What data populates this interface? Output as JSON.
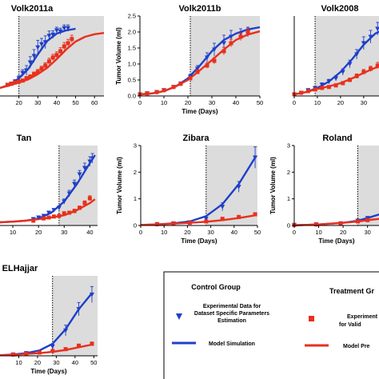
{
  "colors": {
    "control": "#1f3fc9",
    "treatment": "#e8301c",
    "shade": "#dcdcdc",
    "axis": "#000000"
  },
  "chart_data": [
    {
      "type": "scatter",
      "title": "Volk2011a",
      "xlabel": "",
      "ylabel": "",
      "xlim": [
        10,
        65
      ],
      "ylim": [
        0,
        2.5
      ],
      "xticks": [
        20,
        30,
        40,
        50,
        60
      ],
      "yticks": [],
      "treatment_start": 20,
      "series": [
        {
          "group": "control",
          "kind": "data",
          "marker": "triangle",
          "x": [
            14,
            16,
            18,
            20,
            22,
            24,
            26,
            28,
            30,
            32,
            34,
            36,
            38,
            40,
            42,
            44,
            46
          ],
          "y": [
            0.35,
            0.38,
            0.45,
            0.55,
            0.72,
            0.8,
            1.05,
            1.25,
            1.52,
            1.62,
            1.68,
            1.88,
            1.92,
            2.05,
            2.02,
            2.12,
            2.12
          ],
          "err": [
            0.05,
            0.05,
            0.06,
            0.08,
            0.1,
            0.15,
            0.18,
            0.2,
            0.22,
            0.18,
            0.2,
            0.15,
            0.12,
            0.1,
            0.1,
            0.1,
            0.1
          ]
        },
        {
          "group": "treatment",
          "kind": "data",
          "marker": "square",
          "x": [
            14,
            16,
            18,
            20,
            22,
            24,
            26,
            28,
            30,
            32,
            34,
            36,
            38,
            40,
            42,
            44,
            46,
            48
          ],
          "y": [
            0.35,
            0.38,
            0.42,
            0.45,
            0.48,
            0.55,
            0.6,
            0.68,
            0.75,
            0.85,
            0.95,
            1.08,
            1.2,
            1.28,
            1.4,
            1.55,
            1.65,
            1.78
          ],
          "err": [
            0.05,
            0.05,
            0.05,
            0.05,
            0.05,
            0.06,
            0.06,
            0.07,
            0.08,
            0.08,
            0.09,
            0.1,
            0.1,
            0.1,
            0.11,
            0.12,
            0.12,
            0.12
          ]
        },
        {
          "group": "control",
          "kind": "model",
          "x": [
            10,
            15,
            20,
            25,
            30,
            35,
            40,
            45,
            50
          ],
          "y": [
            0.25,
            0.35,
            0.55,
            0.85,
            1.3,
            1.72,
            1.95,
            2.05,
            2.1
          ]
        },
        {
          "group": "treatment",
          "kind": "model",
          "x": [
            10,
            15,
            20,
            25,
            30,
            35,
            40,
            45,
            50,
            55,
            60,
            65
          ],
          "y": [
            0.25,
            0.33,
            0.42,
            0.52,
            0.68,
            0.88,
            1.15,
            1.45,
            1.7,
            1.85,
            1.93,
            1.97
          ]
        }
      ]
    },
    {
      "type": "scatter",
      "title": "Volk2011b",
      "xlabel": "Time (Days)",
      "ylabel": "Tumor Volume (ml)",
      "xlim": [
        0,
        50
      ],
      "ylim": [
        0,
        2.5
      ],
      "xticks": [
        0,
        10,
        20,
        30,
        40,
        50
      ],
      "yticks": [
        0.0,
        0.5,
        1.0,
        1.5,
        2.0,
        2.5
      ],
      "treatment_start": 21,
      "series": [
        {
          "group": "control",
          "kind": "data",
          "marker": "triangle",
          "x": [
            0,
            3,
            7,
            10,
            14,
            17,
            21,
            24,
            28,
            31,
            35,
            38,
            42,
            45
          ],
          "y": [
            0.05,
            0.08,
            0.12,
            0.18,
            0.28,
            0.38,
            0.6,
            0.85,
            1.2,
            1.45,
            1.65,
            1.85,
            1.95,
            2.0
          ],
          "err": [
            0.02,
            0.02,
            0.03,
            0.03,
            0.04,
            0.06,
            0.08,
            0.1,
            0.15,
            0.2,
            0.25,
            0.2,
            0.15,
            0.15
          ]
        },
        {
          "group": "treatment",
          "kind": "data",
          "marker": "square",
          "x": [
            0,
            3,
            7,
            10,
            14,
            17,
            21,
            24,
            28,
            31,
            35,
            38,
            42,
            45
          ],
          "y": [
            0.05,
            0.08,
            0.12,
            0.18,
            0.28,
            0.38,
            0.55,
            0.75,
            0.95,
            1.1,
            1.4,
            1.65,
            1.85,
            2.0
          ],
          "err": [
            0.02,
            0.02,
            0.03,
            0.03,
            0.04,
            0.05,
            0.06,
            0.07,
            0.08,
            0.1,
            0.12,
            0.12,
            0.12,
            0.12
          ]
        },
        {
          "group": "control",
          "kind": "model",
          "x": [
            0,
            5,
            10,
            15,
            20,
            25,
            30,
            35,
            40,
            45,
            50
          ],
          "y": [
            0.05,
            0.08,
            0.15,
            0.3,
            0.55,
            0.95,
            1.4,
            1.75,
            1.95,
            2.08,
            2.15
          ]
        },
        {
          "group": "treatment",
          "kind": "model",
          "x": [
            0,
            5,
            10,
            15,
            20,
            25,
            30,
            35,
            40,
            45,
            50
          ],
          "y": [
            0.05,
            0.08,
            0.15,
            0.3,
            0.5,
            0.8,
            1.12,
            1.45,
            1.75,
            1.92,
            2.02
          ]
        }
      ]
    },
    {
      "type": "scatter",
      "title": "Volk2008",
      "xlabel": "",
      "ylabel": "",
      "xlim": [
        0,
        38
      ],
      "ylim": [
        0,
        2.5
      ],
      "xticks": [
        0,
        10,
        20,
        30
      ],
      "yticks": [],
      "treatment_start": 9,
      "series": [
        {
          "group": "control",
          "kind": "data",
          "marker": "triangle",
          "x": [
            0,
            3,
            6,
            9,
            12,
            15,
            18,
            21,
            24,
            27,
            30,
            33,
            36
          ],
          "y": [
            0.05,
            0.1,
            0.18,
            0.25,
            0.35,
            0.45,
            0.55,
            0.75,
            1.0,
            1.3,
            1.65,
            1.85,
            2.1
          ],
          "err": [
            0.02,
            0.03,
            0.04,
            0.05,
            0.06,
            0.07,
            0.08,
            0.1,
            0.12,
            0.15,
            0.2,
            0.2,
            0.2
          ]
        },
        {
          "group": "treatment",
          "kind": "data",
          "marker": "square",
          "x": [
            0,
            3,
            6,
            9,
            12,
            15,
            18,
            21,
            24,
            27,
            30,
            33,
            36
          ],
          "y": [
            0.05,
            0.1,
            0.15,
            0.2,
            0.25,
            0.28,
            0.33,
            0.4,
            0.5,
            0.62,
            0.75,
            0.85,
            0.95
          ],
          "err": [
            0.02,
            0.03,
            0.03,
            0.04,
            0.04,
            0.04,
            0.05,
            0.05,
            0.06,
            0.07,
            0.08,
            0.08,
            0.1
          ]
        },
        {
          "group": "control",
          "kind": "model",
          "x": [
            0,
            5,
            10,
            15,
            20,
            25,
            30,
            35,
            38
          ],
          "y": [
            0.05,
            0.12,
            0.25,
            0.45,
            0.75,
            1.15,
            1.6,
            1.95,
            2.05
          ]
        },
        {
          "group": "treatment",
          "kind": "model",
          "x": [
            0,
            5,
            10,
            15,
            20,
            25,
            30,
            35,
            38
          ],
          "y": [
            0.05,
            0.12,
            0.22,
            0.3,
            0.4,
            0.55,
            0.72,
            0.88,
            0.95
          ]
        }
      ]
    },
    {
      "type": "scatter",
      "title": "Tan",
      "xlabel": "",
      "ylabel": "",
      "xlim": [
        5,
        43
      ],
      "ylim": [
        0,
        2.5
      ],
      "xticks": [
        10,
        20,
        30,
        40
      ],
      "yticks": [],
      "treatment_start": 28,
      "series": [
        {
          "group": "control",
          "kind": "data",
          "marker": "triangle",
          "x": [
            18,
            20,
            22,
            24,
            26,
            28,
            30,
            32,
            34,
            36,
            38,
            40,
            41
          ],
          "y": [
            0.2,
            0.25,
            0.3,
            0.4,
            0.48,
            0.55,
            0.75,
            1.0,
            1.3,
            1.6,
            1.8,
            2.0,
            2.1
          ],
          "err": [
            0.03,
            0.03,
            0.04,
            0.05,
            0.05,
            0.06,
            0.08,
            0.1,
            0.12,
            0.12,
            0.15,
            0.15,
            0.15
          ]
        },
        {
          "group": "treatment",
          "kind": "data",
          "marker": "square",
          "x": [
            18,
            22,
            24,
            26,
            28,
            30,
            32,
            34,
            36,
            38,
            40
          ],
          "y": [
            0.15,
            0.22,
            0.25,
            0.28,
            0.3,
            0.38,
            0.4,
            0.45,
            0.55,
            0.7,
            0.85
          ],
          "err": [
            0.03,
            0.03,
            0.03,
            0.04,
            0.04,
            0.05,
            0.05,
            0.06,
            0.06,
            0.07,
            0.08
          ]
        },
        {
          "group": "control",
          "kind": "model",
          "x": [
            5,
            10,
            15,
            20,
            25,
            30,
            35,
            40,
            42
          ],
          "y": [
            0.1,
            0.12,
            0.15,
            0.22,
            0.4,
            0.75,
            1.3,
            1.95,
            2.2
          ]
        },
        {
          "group": "treatment",
          "kind": "model",
          "x": [
            5,
            10,
            15,
            20,
            25,
            30,
            35,
            40,
            42
          ],
          "y": [
            0.1,
            0.12,
            0.15,
            0.2,
            0.25,
            0.32,
            0.48,
            0.7,
            0.82
          ]
        }
      ]
    },
    {
      "type": "scatter",
      "title": "Zibara",
      "xlabel": "Time (Days)",
      "ylabel": "Tumor Volume (ml)",
      "xlim": [
        0,
        50
      ],
      "ylim": [
        0,
        3.0
      ],
      "xticks": [
        0,
        10,
        20,
        30,
        40,
        50
      ],
      "yticks": [
        0.0,
        1.0,
        2.0,
        3.0
      ],
      "treatment_start": 28,
      "series": [
        {
          "group": "control",
          "kind": "data",
          "marker": "triangle",
          "x": [
            7,
            14,
            21,
            28,
            35,
            42,
            49
          ],
          "y": [
            0.05,
            0.08,
            0.12,
            0.25,
            0.7,
            1.45,
            2.55
          ],
          "err": [
            0.02,
            0.02,
            0.03,
            0.05,
            0.15,
            0.2,
            0.4
          ]
        },
        {
          "group": "treatment",
          "kind": "data",
          "marker": "square",
          "x": [
            7,
            14,
            21,
            28,
            35,
            42,
            49
          ],
          "y": [
            0.05,
            0.07,
            0.1,
            0.15,
            0.25,
            0.32,
            0.42
          ],
          "err": [
            0.02,
            0.02,
            0.02,
            0.03,
            0.04,
            0.05,
            0.06
          ]
        },
        {
          "group": "control",
          "kind": "model",
          "x": [
            0,
            7,
            14,
            21,
            28,
            35,
            42,
            49
          ],
          "y": [
            0.02,
            0.04,
            0.08,
            0.15,
            0.35,
            0.8,
            1.55,
            2.55
          ]
        },
        {
          "group": "treatment",
          "kind": "model",
          "x": [
            0,
            7,
            14,
            21,
            28,
            35,
            42,
            49
          ],
          "y": [
            0.02,
            0.04,
            0.07,
            0.1,
            0.14,
            0.2,
            0.28,
            0.38
          ]
        }
      ]
    },
    {
      "type": "scatter",
      "title": "Roland",
      "xlabel": "Time (Days)",
      "ylabel": "Tumor Volume (ml)",
      "xlim": [
        0,
        36
      ],
      "ylim": [
        0,
        3.0
      ],
      "xticks": [
        0,
        10,
        20,
        30
      ],
      "yticks": [
        0.0,
        1.0,
        2.0,
        3.0
      ],
      "treatment_start": 26,
      "series": [
        {
          "group": "control",
          "kind": "data",
          "marker": "triangle",
          "x": [
            0,
            9,
            19,
            26,
            30
          ],
          "y": [
            0.02,
            0.04,
            0.08,
            0.18,
            0.28
          ],
          "err": [
            0.01,
            0.01,
            0.02,
            0.03,
            0.04
          ]
        },
        {
          "group": "treatment",
          "kind": "data",
          "marker": "square",
          "x": [
            0,
            9,
            19,
            26,
            30
          ],
          "y": [
            0.02,
            0.04,
            0.08,
            0.15,
            0.2
          ],
          "err": [
            0.01,
            0.01,
            0.02,
            0.03,
            0.03
          ]
        },
        {
          "group": "control",
          "kind": "model",
          "x": [
            0,
            10,
            20,
            26,
            30,
            36
          ],
          "y": [
            0.01,
            0.04,
            0.1,
            0.18,
            0.28,
            0.45
          ]
        },
        {
          "group": "treatment",
          "kind": "model",
          "x": [
            0,
            10,
            20,
            26,
            30,
            36
          ],
          "y": [
            0.01,
            0.04,
            0.1,
            0.15,
            0.2,
            0.26
          ]
        }
      ]
    },
    {
      "type": "scatter",
      "title": "ELHajjar",
      "xlabel": "Time (Days)",
      "ylabel": "",
      "xlim": [
        0,
        52
      ],
      "ylim": [
        0,
        3.0
      ],
      "xticks": [
        10,
        20,
        30,
        40,
        50
      ],
      "yticks": [],
      "treatment_start": 28,
      "series": [
        {
          "group": "control",
          "kind": "data",
          "marker": "triangle",
          "x": [
            7,
            14,
            21,
            28,
            35,
            42,
            49
          ],
          "y": [
            0.05,
            0.1,
            0.15,
            0.35,
            0.95,
            1.75,
            2.3
          ],
          "err": [
            0.02,
            0.03,
            0.04,
            0.08,
            0.2,
            0.25,
            0.3
          ]
        },
        {
          "group": "treatment",
          "kind": "data",
          "marker": "square",
          "x": [
            7,
            14,
            21,
            28,
            35,
            42,
            49
          ],
          "y": [
            0.05,
            0.08,
            0.12,
            0.18,
            0.25,
            0.38,
            0.45
          ],
          "err": [
            0.02,
            0.02,
            0.03,
            0.04,
            0.05,
            0.06,
            0.07
          ]
        },
        {
          "group": "control",
          "kind": "model",
          "x": [
            0,
            7,
            14,
            21,
            28,
            35,
            42,
            49
          ],
          "y": [
            0.02,
            0.05,
            0.1,
            0.2,
            0.45,
            1.0,
            1.75,
            2.35
          ]
        },
        {
          "group": "treatment",
          "kind": "model",
          "x": [
            0,
            7,
            14,
            21,
            28,
            35,
            42,
            49
          ],
          "y": [
            0.02,
            0.04,
            0.07,
            0.1,
            0.15,
            0.22,
            0.32,
            0.42
          ]
        }
      ]
    }
  ],
  "legend": {
    "control_title": "Control Group",
    "treatment_title": "Treatment Gr",
    "control_data_lines": [
      "Experimental Data for",
      "Dataset Specific Parameters",
      "Estimation"
    ],
    "control_model": "Model Simulation",
    "treatment_data_lines": [
      "Experiment",
      "for Valid"
    ],
    "treatment_model": "Model Pre"
  }
}
